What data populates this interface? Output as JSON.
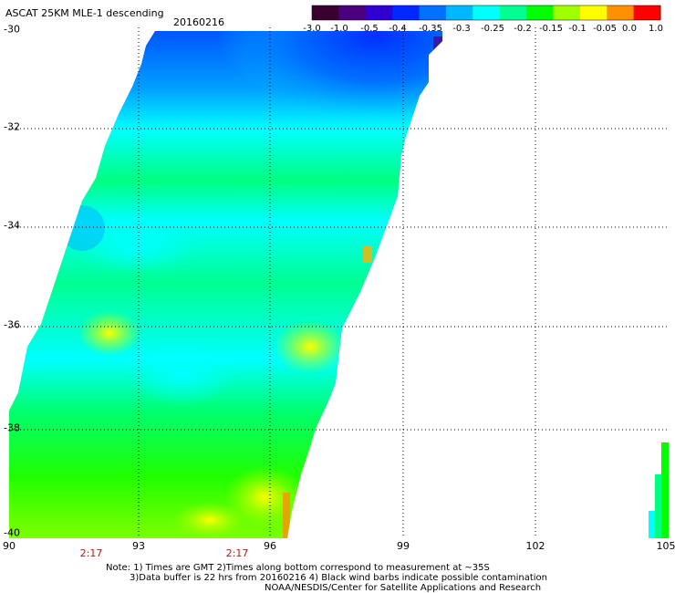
{
  "header": {
    "title": "ASCAT 25KM MLE-1 descending",
    "date": "20160216"
  },
  "colorbar": {
    "tick_labels": [
      "-3.0",
      "-1.0",
      "-0.5",
      "-0.4",
      "-0.35",
      "-0.3",
      "-0.25",
      "-0.2",
      "-0.15",
      "-0.1",
      "-0.05",
      "0.0",
      "1.0"
    ],
    "colors": [
      "#3a0030",
      "#4b007e",
      "#3000d0",
      "#0028ff",
      "#0070ff",
      "#00b8ff",
      "#00ffff",
      "#00ff90",
      "#00ff00",
      "#a0ff00",
      "#ffff00",
      "#ff9000",
      "#ff0000"
    ]
  },
  "map": {
    "latitudes": [
      "-30",
      "-32",
      "-34",
      "-36",
      "-38",
      "-40"
    ],
    "longitudes": [
      "90",
      "93",
      "96",
      "99",
      "102",
      "105"
    ],
    "times": [
      "2:17",
      "2:17"
    ]
  },
  "footer": {
    "line1": "Note: 1) Times are GMT 2)Times along bottom correspond to measurement at ~35S",
    "line2": "3)Data buffer is 22 hrs from 20160216 4) Black wind barbs indicate possible contamination",
    "line3": "NOAA/NESDIS/Center for Satellite Applications and Research"
  }
}
